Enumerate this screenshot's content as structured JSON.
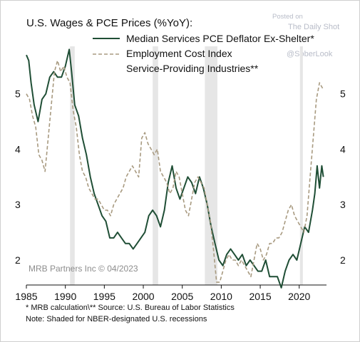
{
  "header": {
    "title": "U.S. Wages & PCE Prices (%YoY):",
    "posted_label": "Posted on",
    "source_site": "The Daily Shot",
    "handle": "@SoberLook"
  },
  "credit": "MRB Partners Inc © 04/2023",
  "footnotes": [
    "*  MRB calculation\\** Source: U.S. Bureau of Labor Statistics",
    "Note: Shaded for NBER-designated U.S. recessions"
  ],
  "colors": {
    "pce": "#1f4e35",
    "eci": "#a89a80",
    "recession": "#e6e6e6"
  },
  "chart_data": {
    "type": "line",
    "x_ticks": [
      "1985",
      "1990",
      "1995",
      "2000",
      "2005",
      "2010",
      "2015",
      "2020"
    ],
    "xlim": [
      1985,
      2023.5
    ],
    "ylim": [
      1.55,
      6.05
    ],
    "y_ticks": [
      "2",
      "3",
      "4",
      "5"
    ],
    "recessions": [
      [
        1990.6,
        1991.2
      ],
      [
        2001.2,
        2001.9
      ],
      [
        2007.9,
        2009.5
      ],
      [
        2020.1,
        2020.4
      ]
    ],
    "series": [
      {
        "name": "Median Services PCE Deflator Ex-Shelter*",
        "style": "solid",
        "points": [
          [
            1985.0,
            5.7
          ],
          [
            1985.3,
            5.6
          ],
          [
            1985.6,
            5.2
          ],
          [
            1986.0,
            4.8
          ],
          [
            1986.5,
            4.5
          ],
          [
            1987.0,
            4.9
          ],
          [
            1987.5,
            5.0
          ],
          [
            1988.0,
            5.3
          ],
          [
            1988.5,
            5.4
          ],
          [
            1989.0,
            5.3
          ],
          [
            1989.5,
            5.3
          ],
          [
            1990.0,
            5.5
          ],
          [
            1990.5,
            5.8
          ],
          [
            1990.8,
            5.4
          ],
          [
            1991.2,
            4.8
          ],
          [
            1991.7,
            4.6
          ],
          [
            1992.2,
            4.2
          ],
          [
            1992.7,
            3.9
          ],
          [
            1993.2,
            3.5
          ],
          [
            1993.7,
            3.2
          ],
          [
            1994.2,
            3.0
          ],
          [
            1994.7,
            2.8
          ],
          [
            1995.2,
            2.7
          ],
          [
            1995.7,
            2.4
          ],
          [
            1996.2,
            2.4
          ],
          [
            1996.7,
            2.5
          ],
          [
            1997.2,
            2.4
          ],
          [
            1997.7,
            2.3
          ],
          [
            1998.2,
            2.3
          ],
          [
            1998.7,
            2.2
          ],
          [
            1999.2,
            2.3
          ],
          [
            1999.7,
            2.4
          ],
          [
            2000.2,
            2.5
          ],
          [
            2000.7,
            2.8
          ],
          [
            2001.2,
            2.9
          ],
          [
            2001.7,
            2.8
          ],
          [
            2002.2,
            2.6
          ],
          [
            2002.7,
            2.9
          ],
          [
            2003.2,
            3.4
          ],
          [
            2003.7,
            3.7
          ],
          [
            2004.2,
            3.3
          ],
          [
            2004.7,
            3.1
          ],
          [
            2005.2,
            3.3
          ],
          [
            2005.7,
            3.5
          ],
          [
            2006.2,
            3.4
          ],
          [
            2006.7,
            3.2
          ],
          [
            2007.2,
            3.5
          ],
          [
            2007.7,
            3.3
          ],
          [
            2008.2,
            3.0
          ],
          [
            2008.7,
            2.6
          ],
          [
            2009.2,
            2.3
          ],
          [
            2009.7,
            2.0
          ],
          [
            2010.2,
            1.9
          ],
          [
            2010.7,
            2.1
          ],
          [
            2011.2,
            2.2
          ],
          [
            2011.7,
            2.1
          ],
          [
            2012.2,
            2.0
          ],
          [
            2012.7,
            2.1
          ],
          [
            2013.2,
            1.9
          ],
          [
            2013.7,
            2.0
          ],
          [
            2014.2,
            1.9
          ],
          [
            2014.7,
            1.8
          ],
          [
            2015.2,
            1.8
          ],
          [
            2015.7,
            2.0
          ],
          [
            2016.2,
            1.7
          ],
          [
            2016.7,
            1.7
          ],
          [
            2017.2,
            1.7
          ],
          [
            2017.7,
            1.5
          ],
          [
            2018.2,
            1.8
          ],
          [
            2018.7,
            2.0
          ],
          [
            2019.2,
            2.1
          ],
          [
            2019.7,
            2.0
          ],
          [
            2020.2,
            2.3
          ],
          [
            2020.7,
            2.6
          ],
          [
            2021.2,
            2.5
          ],
          [
            2021.7,
            2.9
          ],
          [
            2022.0,
            3.2
          ],
          [
            2022.3,
            3.7
          ],
          [
            2022.6,
            3.3
          ],
          [
            2022.9,
            3.7
          ],
          [
            2023.1,
            3.5
          ]
        ]
      },
      {
        "name": "Employment Cost Index Service-Providing Industries**",
        "style": "dashed",
        "points": [
          [
            1985.0,
            5.0
          ],
          [
            1985.4,
            4.9
          ],
          [
            1985.8,
            4.6
          ],
          [
            1986.2,
            4.4
          ],
          [
            1986.6,
            3.9
          ],
          [
            1987.0,
            3.8
          ],
          [
            1987.4,
            3.6
          ],
          [
            1987.8,
            4.2
          ],
          [
            1988.2,
            4.8
          ],
          [
            1988.6,
            5.4
          ],
          [
            1989.0,
            5.6
          ],
          [
            1989.4,
            5.4
          ],
          [
            1989.8,
            5.5
          ],
          [
            1990.2,
            5.3
          ],
          [
            1990.6,
            5.2
          ],
          [
            1991.0,
            4.7
          ],
          [
            1991.4,
            4.4
          ],
          [
            1991.8,
            3.9
          ],
          [
            1992.2,
            3.6
          ],
          [
            1992.6,
            3.5
          ],
          [
            1993.0,
            3.3
          ],
          [
            1993.4,
            3.2
          ],
          [
            1993.8,
            3.1
          ],
          [
            1994.2,
            3.1
          ],
          [
            1994.6,
            3.0
          ],
          [
            1995.0,
            2.9
          ],
          [
            1995.4,
            2.9
          ],
          [
            1995.8,
            2.8
          ],
          [
            1996.2,
            3.0
          ],
          [
            1996.6,
            3.1
          ],
          [
            1997.0,
            3.2
          ],
          [
            1997.4,
            3.3
          ],
          [
            1997.8,
            3.5
          ],
          [
            1998.2,
            3.6
          ],
          [
            1998.6,
            3.7
          ],
          [
            1999.0,
            3.6
          ],
          [
            1999.4,
            3.5
          ],
          [
            1999.8,
            4.2
          ],
          [
            2000.2,
            4.3
          ],
          [
            2000.6,
            4.1
          ],
          [
            2001.0,
            4.0
          ],
          [
            2001.4,
            3.9
          ],
          [
            2001.8,
            4.0
          ],
          [
            2002.2,
            3.6
          ],
          [
            2002.6,
            3.5
          ],
          [
            2003.0,
            3.4
          ],
          [
            2003.4,
            3.2
          ],
          [
            2003.8,
            3.3
          ],
          [
            2004.2,
            3.6
          ],
          [
            2004.6,
            3.5
          ],
          [
            2005.0,
            3.2
          ],
          [
            2005.4,
            2.9
          ],
          [
            2005.8,
            2.8
          ],
          [
            2006.2,
            3.1
          ],
          [
            2006.6,
            3.4
          ],
          [
            2007.0,
            3.5
          ],
          [
            2007.4,
            3.4
          ],
          [
            2007.8,
            3.3
          ],
          [
            2008.2,
            3.0
          ],
          [
            2008.6,
            2.7
          ],
          [
            2009.0,
            2.2
          ],
          [
            2009.4,
            1.6
          ],
          [
            2009.8,
            1.6
          ],
          [
            2010.2,
            1.8
          ],
          [
            2010.6,
            2.0
          ],
          [
            2011.0,
            2.1
          ],
          [
            2011.4,
            2.0
          ],
          [
            2011.8,
            2.0
          ],
          [
            2012.2,
            1.9
          ],
          [
            2012.6,
            2.0
          ],
          [
            2013.0,
            1.9
          ],
          [
            2013.4,
            1.8
          ],
          [
            2013.8,
            1.7
          ],
          [
            2014.2,
            2.0
          ],
          [
            2014.6,
            2.3
          ],
          [
            2015.0,
            2.2
          ],
          [
            2015.4,
            2.0
          ],
          [
            2015.8,
            2.1
          ],
          [
            2016.2,
            2.3
          ],
          [
            2016.6,
            2.3
          ],
          [
            2017.0,
            2.4
          ],
          [
            2017.4,
            2.4
          ],
          [
            2017.8,
            2.5
          ],
          [
            2018.2,
            2.7
          ],
          [
            2018.6,
            2.9
          ],
          [
            2019.0,
            3.0
          ],
          [
            2019.4,
            2.8
          ],
          [
            2019.8,
            2.7
          ],
          [
            2020.2,
            2.6
          ],
          [
            2020.6,
            2.5
          ],
          [
            2021.0,
            2.8
          ],
          [
            2021.4,
            3.5
          ],
          [
            2021.8,
            4.2
          ],
          [
            2022.2,
            4.9
          ],
          [
            2022.6,
            5.2
          ],
          [
            2023.0,
            5.1
          ]
        ]
      }
    ]
  }
}
